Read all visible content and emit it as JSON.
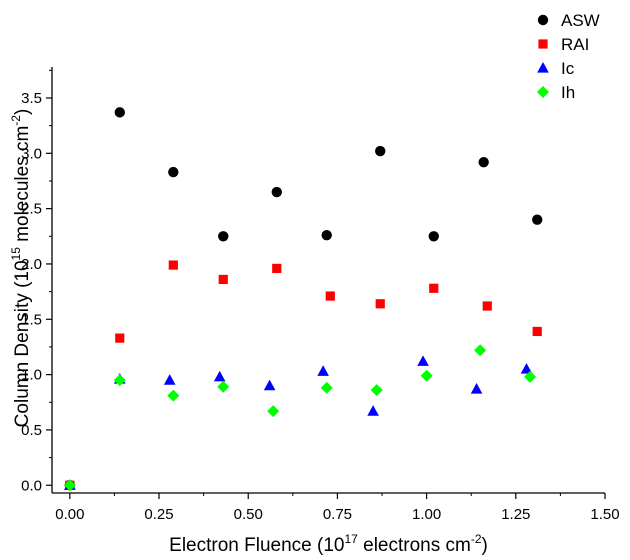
{
  "chart_data": {
    "type": "scatter",
    "xlabel": "Electron Fluence (10{17} electrons cm{-2})",
    "ylabel": "Column Density (10{15} molecules cm{-2})",
    "xlim": [
      -0.05,
      1.5
    ],
    "ylim": [
      -0.07,
      3.78
    ],
    "x_ticks": [
      "0.00",
      "0.25",
      "0.50",
      "0.75",
      "1.00",
      "1.25",
      "1.50"
    ],
    "y_ticks": [
      "0.0",
      "0.5",
      "1.0",
      "1.5",
      "2.0",
      "2.5",
      "3.0",
      "3.5"
    ],
    "legend_position": "top-right",
    "grid": false,
    "series": [
      {
        "name": "ASW",
        "marker": "circle",
        "color": "#000000",
        "points": [
          [
            0.0,
            0.0
          ],
          [
            0.14,
            3.37
          ],
          [
            0.29,
            2.83
          ],
          [
            0.43,
            2.25
          ],
          [
            0.58,
            2.65
          ],
          [
            0.72,
            2.26
          ],
          [
            0.87,
            3.02
          ],
          [
            1.02,
            2.25
          ],
          [
            1.16,
            2.92
          ],
          [
            1.31,
            2.4
          ]
        ]
      },
      {
        "name": "RAI",
        "marker": "square",
        "color": "#ff0000",
        "points": [
          [
            0.0,
            0.0
          ],
          [
            0.14,
            1.33
          ],
          [
            0.29,
            1.99
          ],
          [
            0.43,
            1.86
          ],
          [
            0.58,
            1.96
          ],
          [
            0.73,
            1.71
          ],
          [
            0.87,
            1.64
          ],
          [
            1.02,
            1.78
          ],
          [
            1.17,
            1.62
          ],
          [
            1.31,
            1.39
          ]
        ]
      },
      {
        "name": "Ic",
        "marker": "triangle",
        "color": "#0000ff",
        "points": [
          [
            0.0,
            0.0
          ],
          [
            0.14,
            0.96
          ],
          [
            0.28,
            0.95
          ],
          [
            0.42,
            0.98
          ],
          [
            0.56,
            0.9
          ],
          [
            0.71,
            1.03
          ],
          [
            0.85,
            0.67
          ],
          [
            0.99,
            1.12
          ],
          [
            1.14,
            0.87
          ],
          [
            1.28,
            1.05
          ]
        ]
      },
      {
        "name": "Ih",
        "marker": "diamond",
        "color": "#00ff00",
        "points": [
          [
            0.0,
            0.0
          ],
          [
            0.14,
            0.95
          ],
          [
            0.29,
            0.81
          ],
          [
            0.43,
            0.89
          ],
          [
            0.57,
            0.67
          ],
          [
            0.72,
            0.88
          ],
          [
            0.86,
            0.86
          ],
          [
            1.0,
            0.99
          ],
          [
            1.15,
            1.22
          ],
          [
            1.29,
            0.98
          ]
        ]
      }
    ]
  }
}
